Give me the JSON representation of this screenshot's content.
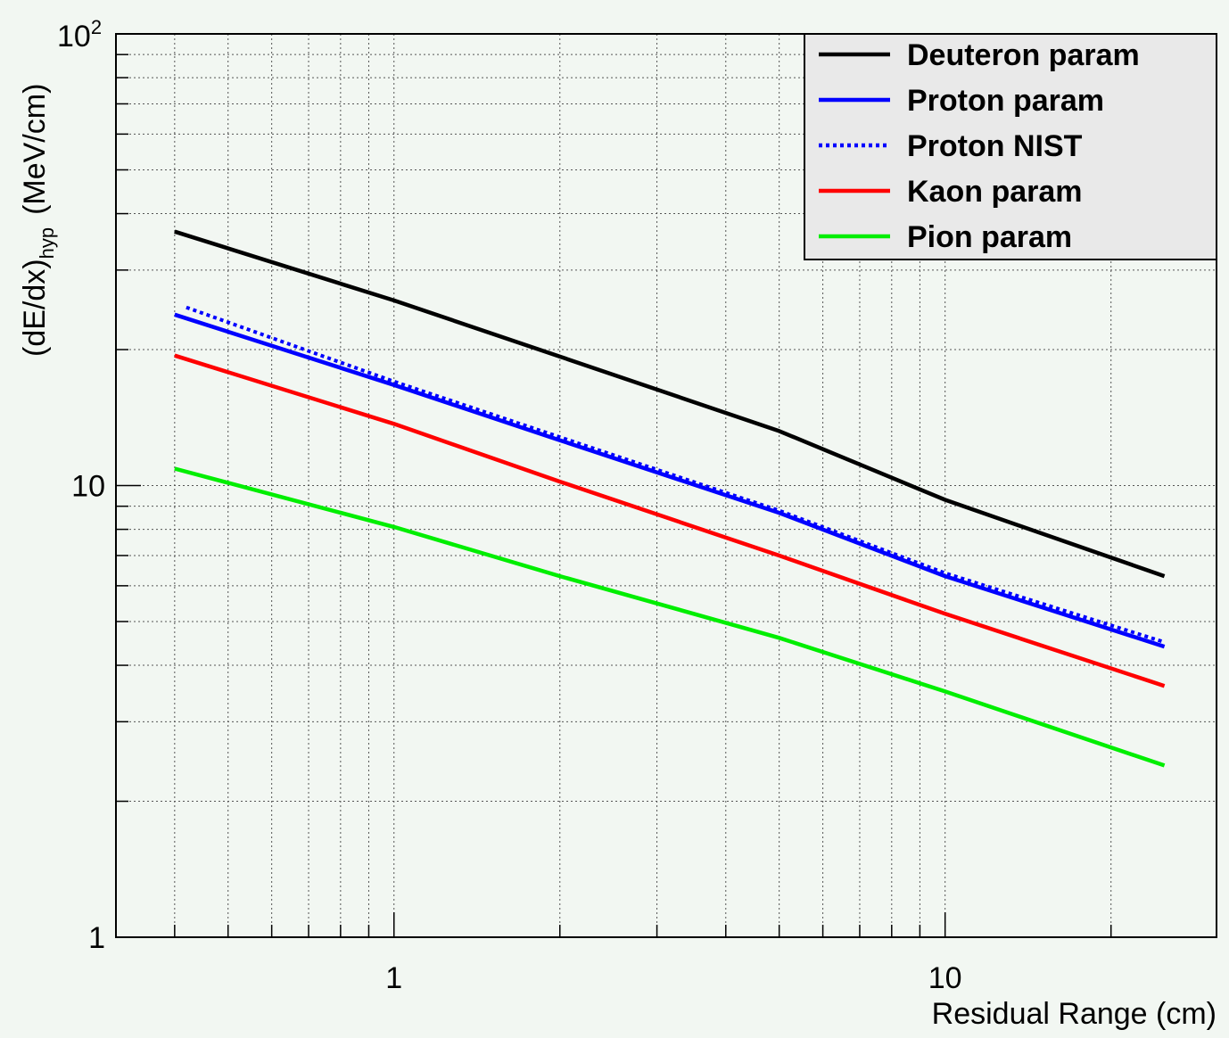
{
  "chart_data": {
    "type": "line",
    "title": "",
    "xlabel": "Residual Range (cm)",
    "ylabel_main": "(dE/dx)",
    "ylabel_sub": "hyp",
    "ylabel_units": "(MeV/cm)",
    "x_scale": "log",
    "y_scale": "log",
    "xlim": [
      0.35,
      28
    ],
    "ylim": [
      1,
      100
    ],
    "x_ticks": [
      {
        "value": 1,
        "label": "1"
      },
      {
        "value": 10,
        "label": "10"
      }
    ],
    "y_ticks": [
      {
        "value": 1,
        "label": "1"
      },
      {
        "value": 10,
        "label": "10"
      }
    ],
    "y_top_tick": {
      "value": 100,
      "base": "10",
      "exponent": "2"
    },
    "grid": true,
    "legend_position": "top-right",
    "series": [
      {
        "name": "Deuteron param",
        "color": "#000000",
        "style": "solid",
        "x": [
          0.4,
          1,
          2,
          5,
          10,
          25
        ],
        "y": [
          36.5,
          25.7,
          19.3,
          13.2,
          9.3,
          6.3
        ]
      },
      {
        "name": "Proton param",
        "color": "#0000ff",
        "style": "solid",
        "x": [
          0.4,
          1,
          2,
          5,
          10,
          25
        ],
        "y": [
          23.9,
          16.7,
          12.6,
          8.7,
          6.3,
          4.4
        ]
      },
      {
        "name": "Proton NIST",
        "color": "#0000ff",
        "style": "dotted",
        "x": [
          0.42,
          1,
          2,
          5,
          10,
          25
        ],
        "y": [
          24.8,
          17.0,
          12.8,
          8.8,
          6.4,
          4.5
        ]
      },
      {
        "name": "Kaon param",
        "color": "#ff0000",
        "style": "solid",
        "x": [
          0.4,
          1,
          2,
          5,
          10,
          25
        ],
        "y": [
          19.4,
          13.7,
          10.2,
          7.0,
          5.2,
          3.6
        ]
      },
      {
        "name": "Pion param",
        "color": "#00ee00",
        "style": "solid",
        "x": [
          0.4,
          1,
          2,
          5,
          10,
          25
        ],
        "y": [
          10.9,
          8.1,
          6.3,
          4.6,
          3.5,
          2.4
        ]
      }
    ]
  },
  "colors": {
    "background": "#f2f7f2",
    "frame": "#000000",
    "grid": "#555555",
    "legend_fill": "#e9e9e9"
  }
}
